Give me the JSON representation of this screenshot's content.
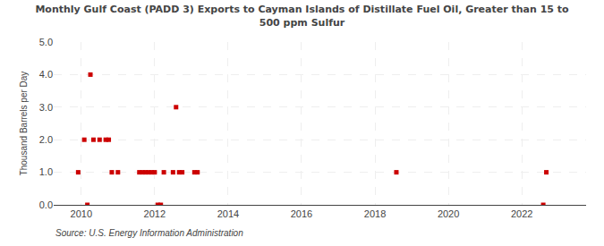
{
  "chart_data": {
    "type": "scatter",
    "title": "Monthly Gulf Coast (PADD 3) Exports to Cayman Islands of Distillate Fuel Oil, Greater than 15 to\n500 ppm Sulfur",
    "ylabel": "Thousand Barrels per Day",
    "annotations": [
      "Source: U.S. Energy Information Administration"
    ],
    "x": [
      2009.917,
      2010.083,
      2010.167,
      2010.25,
      2010.333,
      2010.5,
      2010.667,
      2010.75,
      2010.833,
      2011.0,
      2011.583,
      2011.667,
      2011.75,
      2011.833,
      2011.917,
      2012.0,
      2012.083,
      2012.167,
      2012.25,
      2012.5,
      2012.583,
      2012.667,
      2012.75,
      2013.083,
      2013.167,
      2018.583,
      2022.583,
      2022.667
    ],
    "values": [
      1.0,
      2.0,
      0.0,
      4.0,
      2.0,
      2.0,
      2.0,
      2.0,
      1.0,
      1.0,
      1.0,
      1.0,
      1.0,
      1.0,
      1.0,
      1.0,
      0.0,
      0.0,
      1.0,
      1.0,
      3.0,
      1.0,
      1.0,
      1.0,
      1.0,
      1.0,
      0.0,
      1.0
    ],
    "color": "#cc0000",
    "marker": "square",
    "xlim": [
      2009.25,
      2023.75
    ],
    "xticks": [
      2010,
      2012,
      2014,
      2016,
      2018,
      2020,
      2022
    ],
    "ylim": [
      0.0,
      5.0
    ],
    "yticks": [
      {
        "value": 0.0,
        "label": "0.0"
      },
      {
        "value": 1.0,
        "label": "1.0"
      },
      {
        "value": 2.0,
        "label": "2.0"
      },
      {
        "value": 3.0,
        "label": "3.0"
      },
      {
        "value": 4.0,
        "label": "4.0"
      },
      {
        "value": 5.0,
        "label": "5.0"
      }
    ],
    "grid": true
  }
}
